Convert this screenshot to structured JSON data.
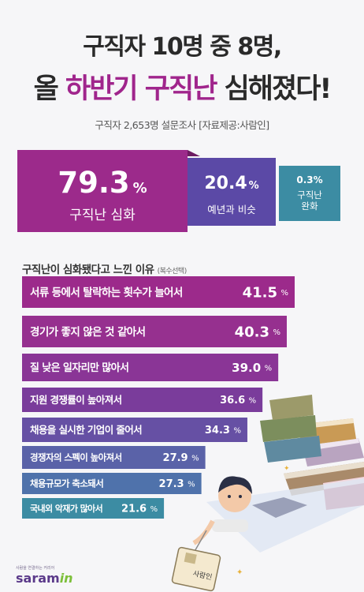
{
  "title": {
    "line1": "구직자 10명 중 8명,",
    "line2_a": "올 ",
    "line2_hl": "하반기 구직난",
    "line2_b": " 심해졌다!"
  },
  "subtitle": "구직자 2,653명 설문조사 [자료제공:사람인]",
  "summary": [
    {
      "value": "79.3",
      "unit": "%",
      "label": "구직난 심화"
    },
    {
      "value": "20.4",
      "unit": "%",
      "label": "예년과 비슷"
    },
    {
      "value": "0.3%",
      "label_line1": "구직난",
      "label_line2": "완화"
    }
  ],
  "section_title": "구직난이 심화됐다고 느낀 이유",
  "section_note": "(복수선택)",
  "percent_unit": "%",
  "colors": {
    "accent": "#a0258c",
    "bars": [
      "#9c2a8b",
      "#96308f",
      "#8a3596",
      "#7a3c9b",
      "#6650a4",
      "#5a62a8",
      "#4f72ab",
      "#3c8ca3"
    ]
  },
  "chart_data": {
    "type": "bar",
    "orientation": "horizontal",
    "categories": [
      "서류 등에서 탈락하는 횟수가 늘어서",
      "경기가 좋지 않은 것 같아서",
      "질 낮은 일자리만 많아서",
      "지원 경쟁률이 높아져서",
      "채용을 실시한 기업이 줄어서",
      "경쟁자의 스펙이 높아져서",
      "채용규모가 축소돼서",
      "국내외 악재가 많아서"
    ],
    "values": [
      41.5,
      40.3,
      39.0,
      36.6,
      34.3,
      27.9,
      27.3,
      21.6
    ],
    "value_labels": [
      "41.5",
      "40.3",
      "39.0",
      "36.6",
      "34.3",
      "27.9",
      "27.3",
      "21.6"
    ]
  },
  "logo": {
    "tagline": "사람을 연결하는 커리어",
    "brand": "saram",
    "brand_accent": "in"
  },
  "illustration": {
    "badge_text": "사람인"
  }
}
